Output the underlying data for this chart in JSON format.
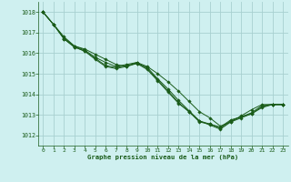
{
  "title": "Graphe pression niveau de la mer (hPa)",
  "bg_color": "#cff0f0",
  "grid_color": "#a8d0d0",
  "line_color": "#1a5c1a",
  "marker_color": "#1a5c1a",
  "xlim": [
    -0.5,
    23.5
  ],
  "ylim": [
    1011.5,
    1018.5
  ],
  "yticks": [
    1012,
    1013,
    1014,
    1015,
    1016,
    1017,
    1018
  ],
  "xticks": [
    0,
    1,
    2,
    3,
    4,
    5,
    6,
    7,
    8,
    9,
    10,
    11,
    12,
    13,
    14,
    15,
    16,
    17,
    18,
    19,
    20,
    21,
    22,
    23
  ],
  "series": [
    [
      1018.0,
      1017.4,
      1016.8,
      1016.35,
      1016.2,
      1015.95,
      1015.7,
      1015.45,
      1015.35,
      1015.55,
      1015.35,
      1015.0,
      1014.6,
      1014.15,
      1013.65,
      1013.15,
      1012.85,
      1012.45,
      1012.65,
      1012.95,
      1013.25,
      1013.5,
      1013.5,
      1013.5
    ],
    [
      1018.0,
      1017.4,
      1016.75,
      1016.35,
      1016.15,
      1015.8,
      1015.55,
      1015.35,
      1015.45,
      1015.55,
      1015.25,
      1014.7,
      1014.15,
      1013.6,
      1013.15,
      1012.7,
      1012.55,
      1012.4,
      1012.75,
      1012.9,
      1013.1,
      1013.45,
      1013.5,
      1013.5
    ],
    [
      1018.0,
      1017.4,
      1016.7,
      1016.3,
      1016.1,
      1015.75,
      1015.4,
      1015.3,
      1015.4,
      1015.5,
      1015.2,
      1014.65,
      1014.1,
      1013.55,
      1013.15,
      1012.65,
      1012.55,
      1012.35,
      1012.7,
      1012.9,
      1013.05,
      1013.4,
      1013.5,
      1013.5
    ],
    [
      1018.0,
      1017.4,
      1016.7,
      1016.3,
      1016.1,
      1015.7,
      1015.35,
      1015.25,
      1015.35,
      1015.5,
      1015.3,
      1014.75,
      1014.25,
      1013.7,
      1013.2,
      1012.7,
      1012.5,
      1012.3,
      1012.65,
      1012.85,
      1013.05,
      1013.35,
      1013.5,
      1013.5
    ]
  ]
}
